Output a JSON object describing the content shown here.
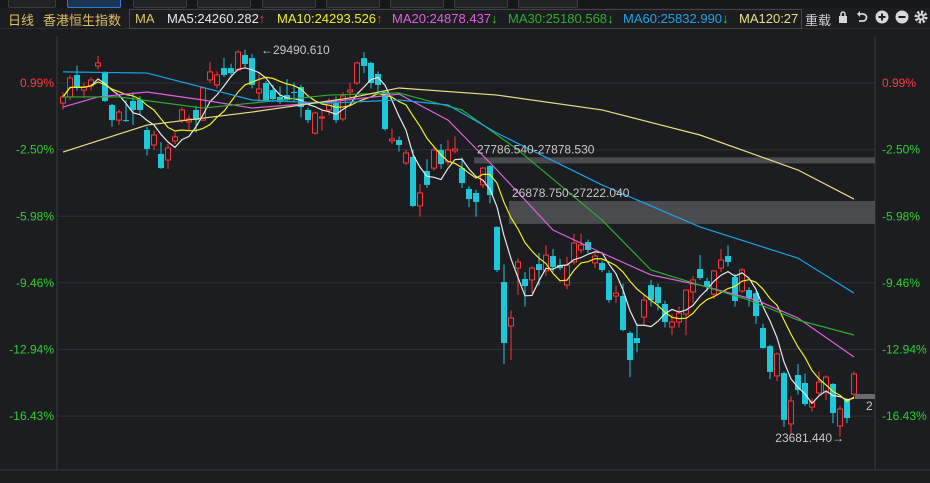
{
  "header": {
    "period": "日线",
    "instrument": "香港恒生指数",
    "indicator": "MA",
    "ma": [
      {
        "label": "MA5:24260.282",
        "color": "#e8e8e8",
        "trend": "up"
      },
      {
        "label": "MA10:24293.526",
        "color": "#f0f020",
        "trend": "up"
      },
      {
        "label": "MA20:24878.437",
        "color": "#e060e0",
        "trend": "down"
      },
      {
        "label": "MA30:25180.568",
        "color": "#2cae2c",
        "trend": "down"
      },
      {
        "label": "MA60:25832.990",
        "color": "#1aa3e8",
        "trend": "down"
      },
      {
        "label": "MA120:27",
        "color": "#e8e080",
        "trend": ""
      }
    ],
    "reload_label": "重载",
    "icons": [
      "lock-icon",
      "undo-icon",
      "zoom-in-icon",
      "zoom-out-icon",
      "gear-icon"
    ]
  },
  "colors": {
    "up": "#ff3333",
    "down": "#1ec8d8",
    "grid": "#2e3036",
    "positive_label": "#ff3b3b",
    "negative_label": "#2fcf2f"
  },
  "chart_data": {
    "type": "candlestick",
    "y_unit": "%",
    "y_ticks": [
      "0.99%",
      "-2.50%",
      "-5.98%",
      "-9.46%",
      "-12.94%",
      "-16.43%"
    ],
    "y_tick_values": [
      0.99,
      -2.5,
      -5.98,
      -9.46,
      -12.94,
      -16.43
    ],
    "grid": true,
    "candles_ohlc": [
      [
        -0.06,
        0.5,
        -0.4,
        0.26
      ],
      [
        0.26,
        1.4,
        0.1,
        1.25
      ],
      [
        1.41,
        1.9,
        0.6,
        0.78
      ],
      [
        0.62,
        1.0,
        0.2,
        0.78
      ],
      [
        0.84,
        1.3,
        0.6,
        1.15
      ],
      [
        1.88,
        2.4,
        1.7,
        2.04
      ],
      [
        1.57,
        1.6,
        0.0,
        0.05
      ],
      [
        -0.16,
        -0.1,
        -1.3,
        -0.95
      ],
      [
        -0.95,
        -0.4,
        -1.2,
        -0.53
      ],
      [
        -0.95,
        0.1,
        -1.05,
        -1.0
      ],
      [
        0.05,
        0.5,
        -1.2,
        -0.42
      ],
      [
        0.1,
        0.3,
        -0.7,
        -0.42
      ],
      [
        -1.47,
        -1.3,
        -2.8,
        -2.46
      ],
      [
        -2.25,
        -1.5,
        -2.5,
        -1.73
      ],
      [
        -2.72,
        -2.1,
        -3.5,
        -3.46
      ],
      [
        -3.04,
        -2.2,
        -3.5,
        -2.41
      ],
      [
        -2.04,
        -1.6,
        -2.2,
        -1.83
      ],
      [
        -0.95,
        -0.3,
        -1.1,
        -0.42
      ],
      [
        -1.05,
        -0.7,
        -1.5,
        -0.89
      ],
      [
        -0.42,
        -0.2,
        -1.6,
        -0.95
      ],
      [
        -0.95,
        0.8,
        -1.0,
        0.73
      ],
      [
        1.15,
        2.1,
        1.0,
        1.57
      ],
      [
        0.89,
        1.6,
        0.7,
        1.41
      ],
      [
        1.77,
        2.3,
        1.3,
        1.41
      ],
      [
        1.77,
        2.0,
        1.4,
        1.51
      ],
      [
        1.67,
        2.7,
        1.6,
        2.61
      ],
      [
        2.45,
        2.72,
        1.8,
        1.98
      ],
      [
        2.29,
        2.5,
        0.7,
        0.89
      ],
      [
        0.47,
        1.5,
        0.0,
        0.68
      ],
      [
        0.99,
        1.1,
        0.0,
        0.1
      ],
      [
        0.62,
        0.9,
        0.0,
        0.15
      ],
      [
        0.26,
        0.8,
        -0.1,
        0.0
      ],
      [
        0.36,
        1.2,
        0.0,
        0.1
      ],
      [
        0.52,
        1.0,
        0.0,
        0.47
      ],
      [
        0.78,
        0.9,
        -0.8,
        -0.27
      ],
      [
        -0.42,
        -0.3,
        -1.1,
        -0.95
      ],
      [
        -1.63,
        -0.5,
        -1.7,
        -0.58
      ],
      [
        -0.79,
        -0.4,
        -1.5,
        -0.79
      ],
      [
        -0.42,
        0.2,
        -0.7,
        0.05
      ],
      [
        -0.06,
        0.3,
        -1.1,
        -0.95
      ],
      [
        -0.89,
        0.5,
        -1.0,
        0.31
      ],
      [
        0.52,
        1.0,
        0.2,
        0.62
      ],
      [
        0.99,
        2.1,
        0.9,
        2.04
      ],
      [
        2.29,
        2.6,
        1.5,
        1.88
      ],
      [
        2.04,
        2.1,
        0.7,
        0.99
      ],
      [
        1.46,
        1.6,
        0.4,
        0.89
      ],
      [
        0.52,
        0.6,
        -1.5,
        -1.42
      ],
      [
        -2.04,
        -1.4,
        -2.2,
        -1.94
      ],
      [
        -1.99,
        -1.8,
        -2.6,
        -2.25
      ],
      [
        -3.19,
        -2.5,
        -3.3,
        -2.67
      ],
      [
        -2.88,
        -2.5,
        -5.5,
        -5.44
      ],
      [
        -5.44,
        -4.3,
        -6.0,
        -4.76
      ],
      [
        -3.61,
        -3.0,
        -4.5,
        -4.34
      ],
      [
        -3.46,
        -2.3,
        -3.6,
        -2.51
      ],
      [
        -2.51,
        -2.2,
        -3.5,
        -3.25
      ],
      [
        -3.14,
        -2.0,
        -3.3,
        -2.51
      ],
      [
        -2.56,
        -1.8,
        -2.7,
        -2.46
      ],
      [
        -3.46,
        -2.9,
        -4.5,
        -4.24
      ],
      [
        -4.55,
        -4.4,
        -5.5,
        -5.08
      ],
      [
        -4.76,
        -4.6,
        -6.0,
        -5.23
      ],
      [
        -4.34,
        -3.4,
        -4.5,
        -3.46
      ],
      [
        -3.35,
        -3.3,
        -5.3,
        -4.87
      ],
      [
        -6.54,
        -6.5,
        -8.9,
        -8.79
      ],
      [
        -9.42,
        -8.5,
        -13.7,
        -12.61
      ],
      [
        -11.72,
        -10.9,
        -13.5,
        -11.3
      ],
      [
        -8.69,
        -8.2,
        -10.1,
        -8.37
      ],
      [
        -9.26,
        -8.9,
        -10.7,
        -9.63
      ],
      [
        -9.31,
        -8.6,
        -10.0,
        -8.69
      ],
      [
        -8.48,
        -7.9,
        -9.6,
        -8.79
      ],
      [
        -8.84,
        -7.5,
        -9.1,
        -8.01
      ],
      [
        -8.06,
        -7.7,
        -8.9,
        -8.63
      ],
      [
        -8.53,
        -8.2,
        -8.8,
        -8.69
      ],
      [
        -9.58,
        -8.1,
        -9.8,
        -8.53
      ],
      [
        -8.37,
        -6.9,
        -8.5,
        -7.38
      ],
      [
        -7.74,
        -6.9,
        -7.9,
        -7.48
      ],
      [
        -7.33,
        -7.2,
        -7.9,
        -7.74
      ],
      [
        -8.42,
        -7.9,
        -8.7,
        -8.06
      ],
      [
        -8.42,
        -8.3,
        -8.9,
        -8.79
      ],
      [
        -8.95,
        -8.8,
        -10.5,
        -10.36
      ],
      [
        -10.15,
        -9.6,
        -10.5,
        -10.0
      ],
      [
        -10.15,
        -9.5,
        -12.0,
        -11.93
      ],
      [
        -12.08,
        -12.0,
        -14.4,
        -13.5
      ],
      [
        -12.35,
        -11.6,
        -13.1,
        -12.61
      ],
      [
        -11.25,
        -10.1,
        -11.7,
        -10.36
      ],
      [
        -9.58,
        -9.3,
        -10.7,
        -10.36
      ],
      [
        -9.68,
        -9.5,
        -10.9,
        -10.52
      ],
      [
        -10.57,
        -10.4,
        -11.8,
        -11.51
      ],
      [
        -11.77,
        -11.1,
        -12.2,
        -11.51
      ],
      [
        -11.51,
        -10.7,
        -11.8,
        -11.04
      ],
      [
        -11.09,
        -9.8,
        -12.2,
        -9.84
      ],
      [
        -9.94,
        -9.1,
        -10.5,
        -9.31
      ],
      [
        -8.74,
        -8.0,
        -9.3,
        -9.21
      ],
      [
        -9.37,
        -9.2,
        -9.9,
        -9.68
      ],
      [
        -10.05,
        -8.8,
        -10.3,
        -8.84
      ],
      [
        -8.69,
        -7.7,
        -8.9,
        -8.27
      ],
      [
        -8.06,
        -7.5,
        -8.6,
        -8.37
      ],
      [
        -9.16,
        -9.0,
        -10.7,
        -10.41
      ],
      [
        -9.89,
        -8.7,
        -10.0,
        -8.79
      ],
      [
        -9.84,
        -9.7,
        -10.7,
        -10.26
      ],
      [
        -10.0,
        -9.9,
        -11.6,
        -11.2
      ],
      [
        -11.82,
        -11.6,
        -12.9,
        -12.87
      ],
      [
        -12.77,
        -12.7,
        -14.5,
        -14.12
      ],
      [
        -14.33,
        -13.1,
        -14.6,
        -13.18
      ],
      [
        -14.18,
        -14.1,
        -17.0,
        -16.63
      ],
      [
        -16.84,
        -15.4,
        -17.4,
        -15.64
      ],
      [
        -14.28,
        -13.7,
        -15.3,
        -15.07
      ],
      [
        -14.7,
        -14.2,
        -15.9,
        -15.8
      ],
      [
        -15.96,
        -15.5,
        -16.2,
        -15.69
      ],
      [
        -15.22,
        -14.1,
        -15.4,
        -14.65
      ],
      [
        -15.17,
        -14.3,
        -15.6,
        -14.39
      ],
      [
        -14.75,
        -14.7,
        -16.8,
        -16.27
      ],
      [
        -16.95,
        -15.9,
        -17.5,
        -16.06
      ],
      [
        -15.59,
        -15.5,
        -16.8,
        -16.53
      ],
      [
        -15.28,
        -14.1,
        -15.4,
        -14.23
      ]
    ],
    "computed_ma": [
      {
        "name": "MA5",
        "period": 5,
        "color": "#e8e8e8"
      },
      {
        "name": "MA10",
        "period": 10,
        "color": "#f0f020"
      }
    ],
    "ma_lines": [
      {
        "name": "MA20",
        "color": "#e060e0",
        "points": [
          [
            0,
            -0.27
          ],
          [
            5,
            0.26
          ],
          [
            12,
            0.52
          ],
          [
            20,
            0.1
          ],
          [
            27,
            -0.32
          ],
          [
            38,
            0.0
          ],
          [
            48,
            0.41
          ],
          [
            55,
            -0.95
          ],
          [
            62,
            -3.56
          ],
          [
            70,
            -6.7
          ],
          [
            77,
            -7.9
          ],
          [
            84,
            -9.05
          ],
          [
            91,
            -9.58
          ],
          [
            99,
            -10.36
          ],
          [
            105,
            -11.3
          ],
          [
            113,
            -13.34
          ]
        ]
      },
      {
        "name": "MA30",
        "color": "#2cae2c",
        "points": [
          [
            0,
            0.26
          ],
          [
            8,
            0.26
          ],
          [
            20,
            -0.32
          ],
          [
            27,
            -0.06
          ],
          [
            38,
            0.36
          ],
          [
            48,
            0.47
          ],
          [
            57,
            -0.42
          ],
          [
            65,
            -2.51
          ],
          [
            77,
            -6.18
          ],
          [
            84,
            -8.79
          ],
          [
            91,
            -9.58
          ],
          [
            98,
            -10.36
          ],
          [
            105,
            -11.41
          ],
          [
            113,
            -12.19
          ]
        ]
      },
      {
        "name": "MA60",
        "color": "#1aa3e8",
        "points": [
          [
            0,
            1.57
          ],
          [
            12,
            1.51
          ],
          [
            27,
            0.1
          ],
          [
            38,
            -0.06
          ],
          [
            48,
            0.1
          ],
          [
            55,
            -0.16
          ],
          [
            62,
            -1.63
          ],
          [
            77,
            -4.34
          ],
          [
            91,
            -6.54
          ],
          [
            105,
            -8.17
          ],
          [
            113,
            -10.0
          ]
        ]
      },
      {
        "name": "MA120",
        "color": "#e8e080",
        "points": [
          [
            0,
            -2.62
          ],
          [
            12,
            -1.21
          ],
          [
            27,
            -0.53
          ],
          [
            41,
            0.21
          ],
          [
            48,
            0.73
          ],
          [
            62,
            0.36
          ],
          [
            77,
            -0.42
          ],
          [
            91,
            -1.73
          ],
          [
            105,
            -3.56
          ],
          [
            113,
            -5.08
          ]
        ]
      }
    ],
    "price_bands": [
      {
        "label": "27786.540-27878.530",
        "low": 27786.54,
        "high": 27878.53,
        "start_index": 59
      },
      {
        "label": "26878.750-27222.040",
        "low": 26878.75,
        "high": 27222.04,
        "start_index": 64
      }
    ],
    "max_label": {
      "text": "←29490.610",
      "index": 28,
      "value": 29490.61
    },
    "min_label": {
      "text": "23681.440→",
      "index": 112,
      "value": 23681.44
    },
    "last_marker": "2"
  }
}
